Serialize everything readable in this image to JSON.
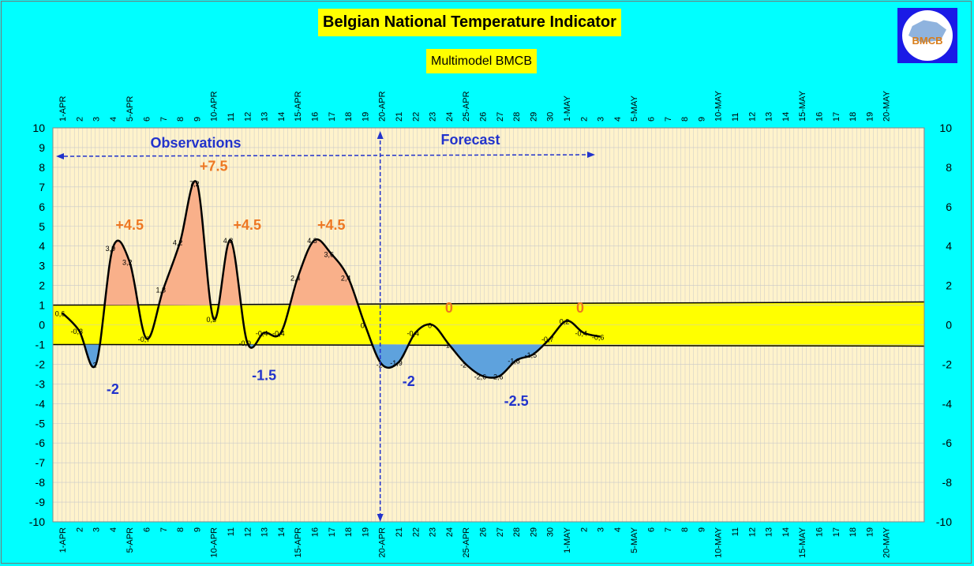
{
  "title": "Belgian National Temperature Indicator",
  "subtitle": "Multimodel BMCB",
  "logo_text": "BMCB",
  "colors": {
    "background": "#00ffff",
    "plot": "#fff3cc",
    "band": "#ffff00",
    "positive_fill": "#f9b08a",
    "negative_fill": "#5ea2dd",
    "positive_label": "#ee7722",
    "negative_label": "#2233cc",
    "annotation": "#2233cc"
  },
  "chart_data": {
    "type": "line",
    "ylim": [
      -10,
      10
    ],
    "y_ticks": [
      -10,
      -9,
      -8,
      -7,
      -6,
      -5,
      -4,
      -3,
      -2,
      -1,
      0,
      1,
      2,
      3,
      4,
      5,
      6,
      7,
      8,
      9,
      10
    ],
    "right_y_ticks": [
      -10,
      -8,
      -6,
      -4,
      -2,
      0,
      2,
      4,
      6,
      8,
      10
    ],
    "band": [
      -1,
      1
    ],
    "x_labels": [
      "1-APR",
      "2",
      "3",
      "4",
      "5-APR",
      "6",
      "7",
      "8",
      "9",
      "10-APR",
      "11",
      "12",
      "13",
      "14",
      "15-APR",
      "16",
      "17",
      "18",
      "19",
      "20-APR",
      "21",
      "22",
      "23",
      "24",
      "25-APR",
      "26",
      "27",
      "28",
      "29",
      "30",
      "1-MAY",
      "2",
      "3",
      "4",
      "5-MAY",
      "6",
      "7",
      "8",
      "9",
      "10-MAY",
      "11",
      "12",
      "13",
      "14",
      "15-MAY",
      "16",
      "17",
      "18",
      "19",
      "20-MAY"
    ],
    "series": [
      {
        "values": [
          0.6,
          -0.3,
          -2,
          3.9,
          3.2,
          -0.7,
          1.8,
          4.2,
          7.2,
          0.3,
          4.3,
          -0.9,
          -0.4,
          -0.4,
          2.4,
          4.3,
          3.6,
          2.4,
          0,
          -2,
          -1.9,
          -0.4,
          0,
          -1,
          -2,
          -2.6,
          -2.6,
          -1.8,
          -1.5,
          -0.7,
          0.2,
          -0.4,
          -0.6
        ],
        "point_labels": [
          "0,6",
          "-0,3",
          "-2",
          "3,9",
          "3,2",
          "-0,7",
          "1,8",
          "4,2",
          "7,2",
          "0,3",
          "4,3",
          "-0,9",
          "-0,4",
          "-0,4",
          "2,4",
          "4,3",
          "3,6",
          "2,4",
          "0",
          "-2",
          "-1,9",
          "-0,4",
          "0",
          "-1",
          "-2",
          "-2,6",
          "-2,6",
          "-1,8",
          "-1,5",
          "-0,7",
          "0,2",
          "-0,4",
          "-0,6"
        ]
      }
    ],
    "peak_labels": [
      {
        "text": "+4.5",
        "x": 4,
        "y": 4.5,
        "kind": "pos"
      },
      {
        "text": "+7.5",
        "x": 9,
        "y": 7.5,
        "kind": "pos"
      },
      {
        "text": "+4.5",
        "x": 11,
        "y": 4.5,
        "kind": "pos"
      },
      {
        "text": "+4.5",
        "x": 16,
        "y": 4.5,
        "kind": "pos"
      },
      {
        "text": "0",
        "x": 23,
        "y": 0.3,
        "kind": "pos"
      },
      {
        "text": "0",
        "x": 30.8,
        "y": 0.3,
        "kind": "pos"
      },
      {
        "text": "-2",
        "x": 3,
        "y": -3.5,
        "kind": "neg"
      },
      {
        "text": "-1.5",
        "x": 12,
        "y": -2.8,
        "kind": "neg"
      },
      {
        "text": "-2",
        "x": 20.6,
        "y": -3.1,
        "kind": "neg"
      },
      {
        "text": "-2.5",
        "x": 27,
        "y": -4.1,
        "kind": "neg"
      }
    ],
    "annotations": {
      "observations": "Observations",
      "forecast": "Forecast"
    },
    "split_at": 19
  }
}
